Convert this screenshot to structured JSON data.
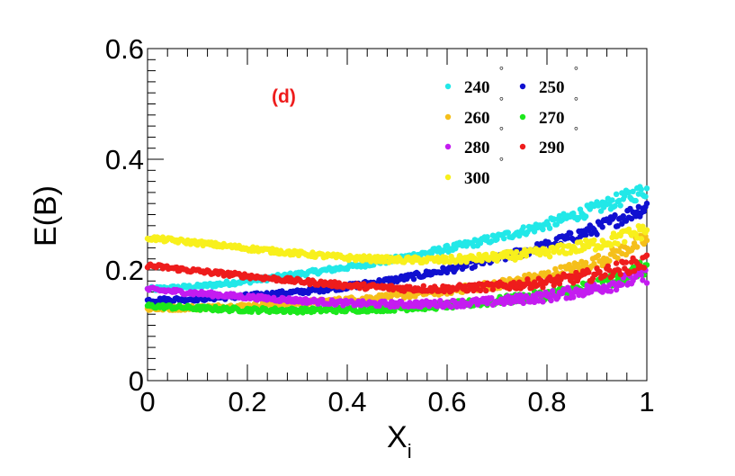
{
  "chart_data": {
    "type": "scatter",
    "title": "",
    "panel_label": "(d)",
    "panel_label_color": "#ee1c1c",
    "xlabel": "X",
    "xlabel_subscript": "i",
    "ylabel": "E(B)",
    "xlim": [
      0,
      1
    ],
    "ylim": [
      0,
      0.6
    ],
    "xticks": [
      0,
      0.2,
      0.4,
      0.6,
      0.8,
      1
    ],
    "xtick_labels": [
      "0",
      "0.2",
      "0.4",
      "0.6",
      "0.8",
      "1"
    ],
    "yticks": [
      0,
      0.2,
      0.4,
      0.6
    ],
    "ytick_labels": [
      "0",
      "0.2",
      "0.4",
      "0.6"
    ],
    "grid": false,
    "legend_position": "top-right",
    "legend_symbol": "°",
    "series": [
      {
        "name": "240",
        "color": "#22e8e8",
        "x": [
          0,
          0.1,
          0.2,
          0.3,
          0.4,
          0.5,
          0.6,
          0.7,
          0.8,
          0.9,
          1.0
        ],
        "values": [
          0.165,
          0.17,
          0.18,
          0.192,
          0.205,
          0.22,
          0.238,
          0.258,
          0.282,
          0.312,
          0.345
        ]
      },
      {
        "name": "250",
        "color": "#1010d0",
        "x": [
          0,
          0.1,
          0.2,
          0.3,
          0.4,
          0.5,
          0.6,
          0.7,
          0.8,
          0.9,
          1.0
        ],
        "values": [
          0.145,
          0.148,
          0.153,
          0.16,
          0.17,
          0.183,
          0.2,
          0.22,
          0.244,
          0.275,
          0.315
        ]
      },
      {
        "name": "260",
        "color": "#f5bf1a",
        "x": [
          0,
          0.1,
          0.2,
          0.3,
          0.4,
          0.5,
          0.6,
          0.7,
          0.8,
          0.9,
          1.0
        ],
        "values": [
          0.13,
          0.132,
          0.135,
          0.14,
          0.146,
          0.153,
          0.162,
          0.174,
          0.19,
          0.215,
          0.255
        ]
      },
      {
        "name": "270",
        "color": "#1ce81c",
        "x": [
          0,
          0.1,
          0.2,
          0.3,
          0.4,
          0.5,
          0.6,
          0.7,
          0.8,
          0.9,
          1.0
        ],
        "values": [
          0.135,
          0.131,
          0.128,
          0.127,
          0.128,
          0.131,
          0.136,
          0.144,
          0.155,
          0.172,
          0.205
        ]
      },
      {
        "name": "280",
        "color": "#c41cf0",
        "x": [
          0,
          0.1,
          0.2,
          0.3,
          0.4,
          0.5,
          0.6,
          0.7,
          0.8,
          0.9,
          1.0
        ],
        "values": [
          0.165,
          0.158,
          0.151,
          0.145,
          0.14,
          0.138,
          0.139,
          0.143,
          0.152,
          0.167,
          0.19
        ]
      },
      {
        "name": "290",
        "color": "#ee1c1c",
        "x": [
          0,
          0.1,
          0.2,
          0.3,
          0.4,
          0.5,
          0.6,
          0.7,
          0.8,
          0.9,
          1.0
        ],
        "values": [
          0.208,
          0.198,
          0.189,
          0.18,
          0.172,
          0.167,
          0.166,
          0.17,
          0.178,
          0.192,
          0.215
        ]
      },
      {
        "name": "300",
        "color": "#f8f01c",
        "x": [
          0,
          0.1,
          0.2,
          0.3,
          0.4,
          0.5,
          0.6,
          0.7,
          0.8,
          0.9,
          1.0
        ],
        "values": [
          0.258,
          0.249,
          0.239,
          0.23,
          0.222,
          0.218,
          0.218,
          0.223,
          0.232,
          0.247,
          0.272
        ]
      }
    ]
  }
}
